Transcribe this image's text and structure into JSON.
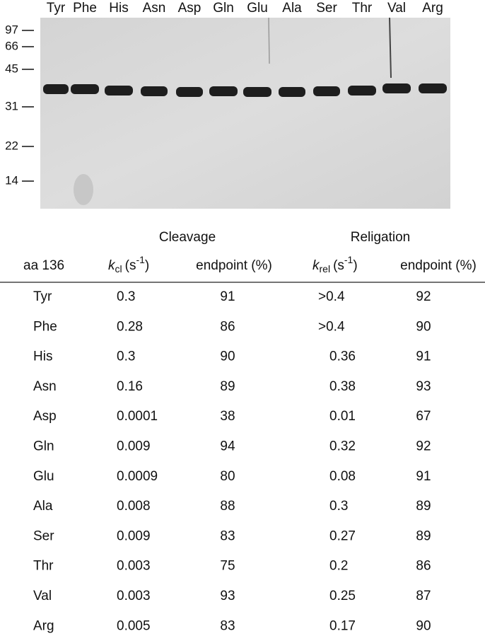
{
  "gel": {
    "lanes": [
      "Tyr",
      "Phe",
      "His",
      "Asn",
      "Asp",
      "Gln",
      "Glu",
      "Ala",
      "Ser",
      "Thr",
      "Val",
      "Arg"
    ],
    "markers": [
      "97",
      "66",
      "45",
      "31",
      "22",
      "14"
    ]
  },
  "table": {
    "groups": [
      "Cleavage",
      "Religation"
    ],
    "columns": [
      {
        "text": "aa 136"
      },
      {
        "symbol": "k",
        "subscript": "cl",
        "unit": "(s",
        "superscript": "-1",
        "close": ")"
      },
      {
        "text": "endpoint (%)"
      },
      {
        "symbol": "k",
        "subscript": "rel",
        "unit": "(s",
        "superscript": "-1",
        "close": ")"
      },
      {
        "text": "endpoint (%)"
      }
    ],
    "rows": [
      [
        "Tyr",
        "0.3",
        "91",
        ">0.4",
        "92"
      ],
      [
        "Phe",
        "0.28",
        "86",
        ">0.4",
        "90"
      ],
      [
        "His",
        "0.3",
        "90",
        "0.36",
        "91"
      ],
      [
        "Asn",
        "0.16",
        "89",
        "0.38",
        "93"
      ],
      [
        "Asp",
        "0.0001",
        "38",
        "0.01",
        "67"
      ],
      [
        "Gln",
        "0.009",
        "94",
        "0.32",
        "92"
      ],
      [
        "Glu",
        "0.0009",
        "80",
        "0.08",
        "91"
      ],
      [
        "Ala",
        "0.008",
        "88",
        "0.3",
        "89"
      ],
      [
        "Ser",
        "0.009",
        "83",
        "0.27",
        "89"
      ],
      [
        "Thr",
        "0.003",
        "75",
        "0.2",
        "86"
      ],
      [
        "Val",
        "0.003",
        "93",
        "0.25",
        "87"
      ],
      [
        "Arg",
        "0.005",
        "83",
        "0.17",
        "90"
      ]
    ]
  }
}
